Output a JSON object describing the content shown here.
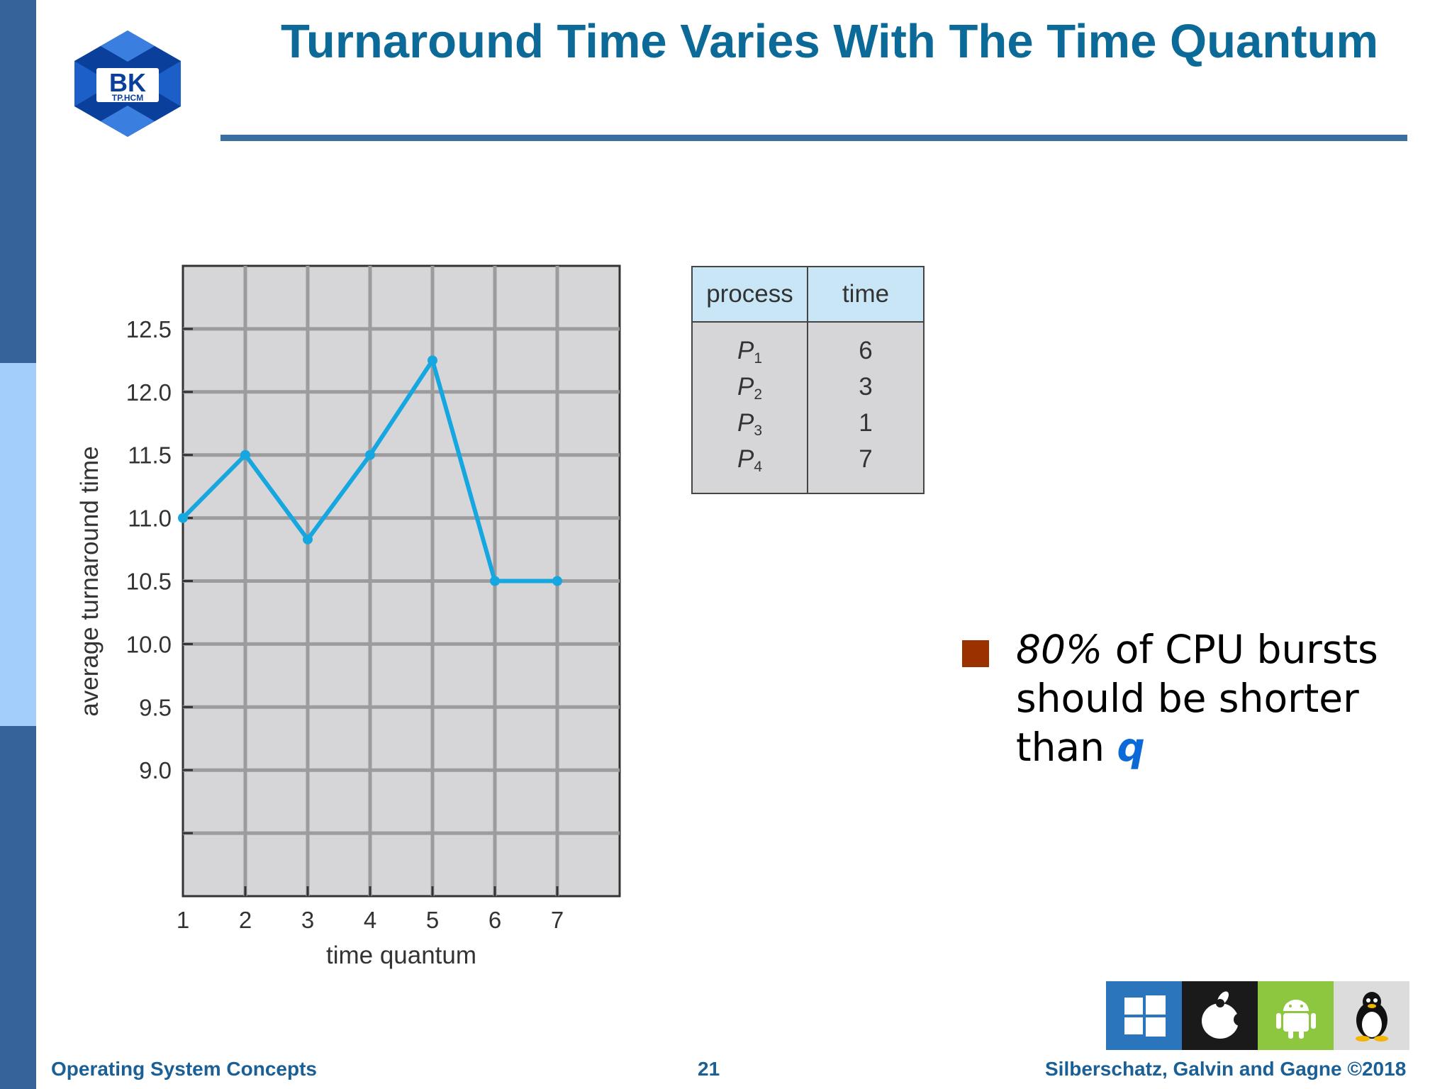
{
  "slide": {
    "title": "Turnaround Time Varies With The Time Quantum",
    "logo": {
      "top_text": "BK",
      "bottom_text": "TP.HCM",
      "icon": "bk-hexagon-logo"
    }
  },
  "chart_data": {
    "type": "line",
    "title": "",
    "xlabel": "time quantum",
    "ylabel": "average turnaround time",
    "x": [
      1,
      2,
      3,
      4,
      5,
      6,
      7
    ],
    "y": [
      11.0,
      11.5,
      10.83,
      11.5,
      12.25,
      10.5,
      10.5
    ],
    "xticks": [
      "1",
      "2",
      "3",
      "4",
      "5",
      "6",
      "7"
    ],
    "yticks": [
      "12.5",
      "12.0",
      "11.5",
      "11.0",
      "10.5",
      "10.0",
      "9.5",
      "9.0"
    ],
    "ytick_values": [
      12.5,
      12.0,
      11.5,
      11.0,
      10.5,
      10.0,
      9.5,
      9.0
    ],
    "xlim": [
      1,
      8
    ],
    "ylim": [
      8.0,
      13.0
    ],
    "grid": true,
    "colors": {
      "line": "#16a6e0",
      "plot_bg": "#d6d6d8",
      "grid": "#9c9c9e"
    }
  },
  "process_table": {
    "headers": [
      "process",
      "time"
    ],
    "rows": [
      {
        "name": "P",
        "sub": "1",
        "time": "6"
      },
      {
        "name": "P",
        "sub": "2",
        "time": "3"
      },
      {
        "name": "P",
        "sub": "3",
        "time": "1"
      },
      {
        "name": "P",
        "sub": "4",
        "time": "7"
      }
    ]
  },
  "bullet": {
    "percent": "80%",
    "text_a": " of CPU bursts should be shorter than ",
    "q": "q",
    "color": "#9c3100"
  },
  "os_icons": [
    "windows-icon",
    "apple-icon",
    "android-icon",
    "linux-tux-icon"
  ],
  "footer": {
    "left": "Operating System Concepts",
    "page": "21",
    "right": "Silberschatz, Galvin and Gagne ©2018"
  }
}
